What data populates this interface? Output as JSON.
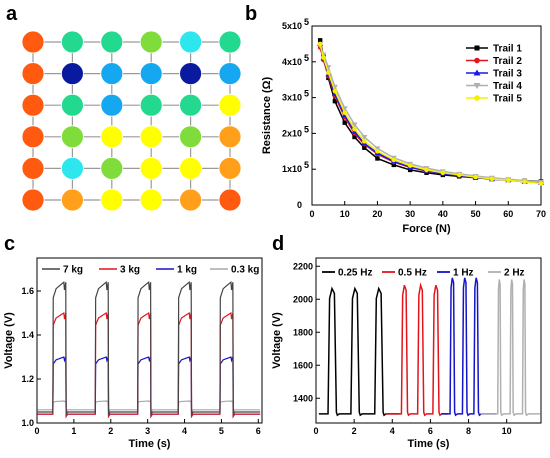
{
  "panel_labels": {
    "a": "a",
    "b": "b",
    "c": "c",
    "d": "d"
  },
  "colors": {
    "orange_red": "#ff5a10",
    "orange": "#ff9f1a",
    "yellow": "#ffff00",
    "green": "#7fdc3a",
    "teal": "#22d98f",
    "cyan": "#2de6ee",
    "sky": "#15a8f0",
    "navy": "#0a1a9e"
  },
  "chart_data": [
    {
      "type": "heatmap",
      "panel": "a",
      "rows": 6,
      "cols": 6,
      "grid_lines": true,
      "cells": [
        [
          "orange_red",
          "teal",
          "teal",
          "green",
          "cyan",
          "teal"
        ],
        [
          "orange_red",
          "navy",
          "sky",
          "sky",
          "navy",
          "sky"
        ],
        [
          "orange_red",
          "teal",
          "sky",
          "teal",
          "teal",
          "yellow"
        ],
        [
          "orange_red",
          "green",
          "yellow",
          "yellow",
          "green",
          "orange"
        ],
        [
          "orange_red",
          "cyan",
          "green",
          "yellow",
          "yellow",
          "orange"
        ],
        [
          "orange_red",
          "orange",
          "yellow",
          "yellow",
          "orange",
          "orange_red"
        ]
      ]
    },
    {
      "type": "line",
      "panel": "b",
      "xlabel": "Force (N)",
      "ylabel": "Resistance (Ω)",
      "xlim": [
        0,
        70
      ],
      "ylim": [
        0,
        500000
      ],
      "x_ticks": [
        "0",
        "10",
        "20",
        "30",
        "40",
        "50",
        "60",
        "70"
      ],
      "y_ticks": [
        "0",
        "1x10",
        "2x10",
        "3x10",
        "4x10",
        "5x10"
      ],
      "y_tick_exponent": "5",
      "legend_position": "top-right",
      "x": [
        2.5,
        3.5,
        5,
        7,
        10,
        13,
        16,
        20,
        25,
        30,
        35,
        40,
        45,
        50,
        55,
        60,
        65,
        70
      ],
      "series": [
        {
          "name": "Trail 1",
          "color": "#000000",
          "marker": "square",
          "values": [
            460000,
            415000,
            355000,
            290000,
            230000,
            190000,
            160000,
            130000,
            112000,
            98000,
            90000,
            84000,
            80000,
            76000,
            73000,
            70000,
            68000,
            66000
          ]
        },
        {
          "name": "Trail 2",
          "color": "#e4141b",
          "marker": "circle",
          "values": [
            440000,
            405000,
            360000,
            305000,
            245000,
            200000,
            170000,
            142000,
            120000,
            105000,
            95000,
            88000,
            82000,
            77000,
            73000,
            70000,
            66000,
            63000
          ]
        },
        {
          "name": "Trail 3",
          "color": "#1a1ae6",
          "marker": "triangle-up",
          "values": [
            450000,
            410000,
            365000,
            310000,
            250000,
            205000,
            172000,
            145000,
            122000,
            106000,
            96000,
            88000,
            82000,
            77000,
            72000,
            69000,
            65000,
            62000
          ]
        },
        {
          "name": "Trail 4",
          "color": "#b0b0b0",
          "marker": "triangle-down",
          "values": [
            445000,
            420000,
            385000,
            330000,
            270000,
            225000,
            190000,
            158000,
            132000,
            115000,
            103000,
            94000,
            87000,
            81000,
            76000,
            72000,
            68000,
            65000
          ]
        },
        {
          "name": "Trail 5",
          "color": "#f5f000",
          "marker": "circle",
          "values": [
            450000,
            412000,
            370000,
            318000,
            258000,
            212000,
            178000,
            150000,
            126000,
            110000,
            98000,
            90000,
            84000,
            78000,
            73000,
            69000,
            65000,
            60000
          ]
        }
      ]
    },
    {
      "type": "line",
      "panel": "c",
      "xlabel": "Time (s)",
      "ylabel": "Voltage (V)",
      "xlim": [
        0,
        6.1
      ],
      "ylim": [
        1.0,
        1.75
      ],
      "x_ticks": [
        "0",
        "1",
        "2",
        "3",
        "4",
        "5",
        "6"
      ],
      "y_ticks": [
        "1.0",
        "1.2",
        "1.4",
        "1.6"
      ],
      "legend_position": "top",
      "pulse_starts": [
        0.43,
        1.58,
        2.73,
        3.83,
        4.96
      ],
      "pulse_width": 0.35,
      "series": [
        {
          "name": "7 kg",
          "color": "#444444",
          "baseline": 1.05,
          "high": 1.64
        },
        {
          "name": "3 kg",
          "color": "#e4141b",
          "baseline": 1.04,
          "high": 1.5
        },
        {
          "name": "1 kg",
          "color": "#1414c8",
          "baseline": 1.04,
          "high": 1.3
        },
        {
          "name": "0.3 kg",
          "color": "#a8a8a8",
          "baseline": 1.06,
          "high": 1.1
        }
      ]
    },
    {
      "type": "line",
      "panel": "d",
      "xlabel": "Time (s)",
      "ylabel": "Voltage (V)",
      "xlim": [
        0,
        11.8
      ],
      "ylim": [
        1250,
        2250
      ],
      "x_ticks": [
        "0",
        "2",
        "4",
        "6",
        "8",
        "10"
      ],
      "y_ticks": [
        "1400",
        "1600",
        "1800",
        "2000",
        "2200"
      ],
      "legend_position": "top",
      "baseline": 1305,
      "series": [
        {
          "name": "0.25 Hz",
          "color": "#000000",
          "peak": 2065,
          "pulse_width": 0.42,
          "pulse_starts": [
            0.65,
            1.85,
            3.1
          ]
        },
        {
          "name": "0.5 Hz",
          "color": "#e4141b",
          "peak": 2085,
          "pulse_width": 0.3,
          "pulse_starts": [
            4.5,
            5.35,
            6.15
          ]
        },
        {
          "name": "1 Hz",
          "color": "#1414c8",
          "peak": 2130,
          "pulse_width": 0.22,
          "pulse_starts": [
            7.05,
            7.7,
            8.3
          ]
        },
        {
          "name": "2 Hz",
          "color": "#b0b0b0",
          "peak": 2120,
          "pulse_width": 0.14,
          "pulse_starts": [
            9.55,
            10.2,
            10.85
          ]
        }
      ]
    }
  ]
}
